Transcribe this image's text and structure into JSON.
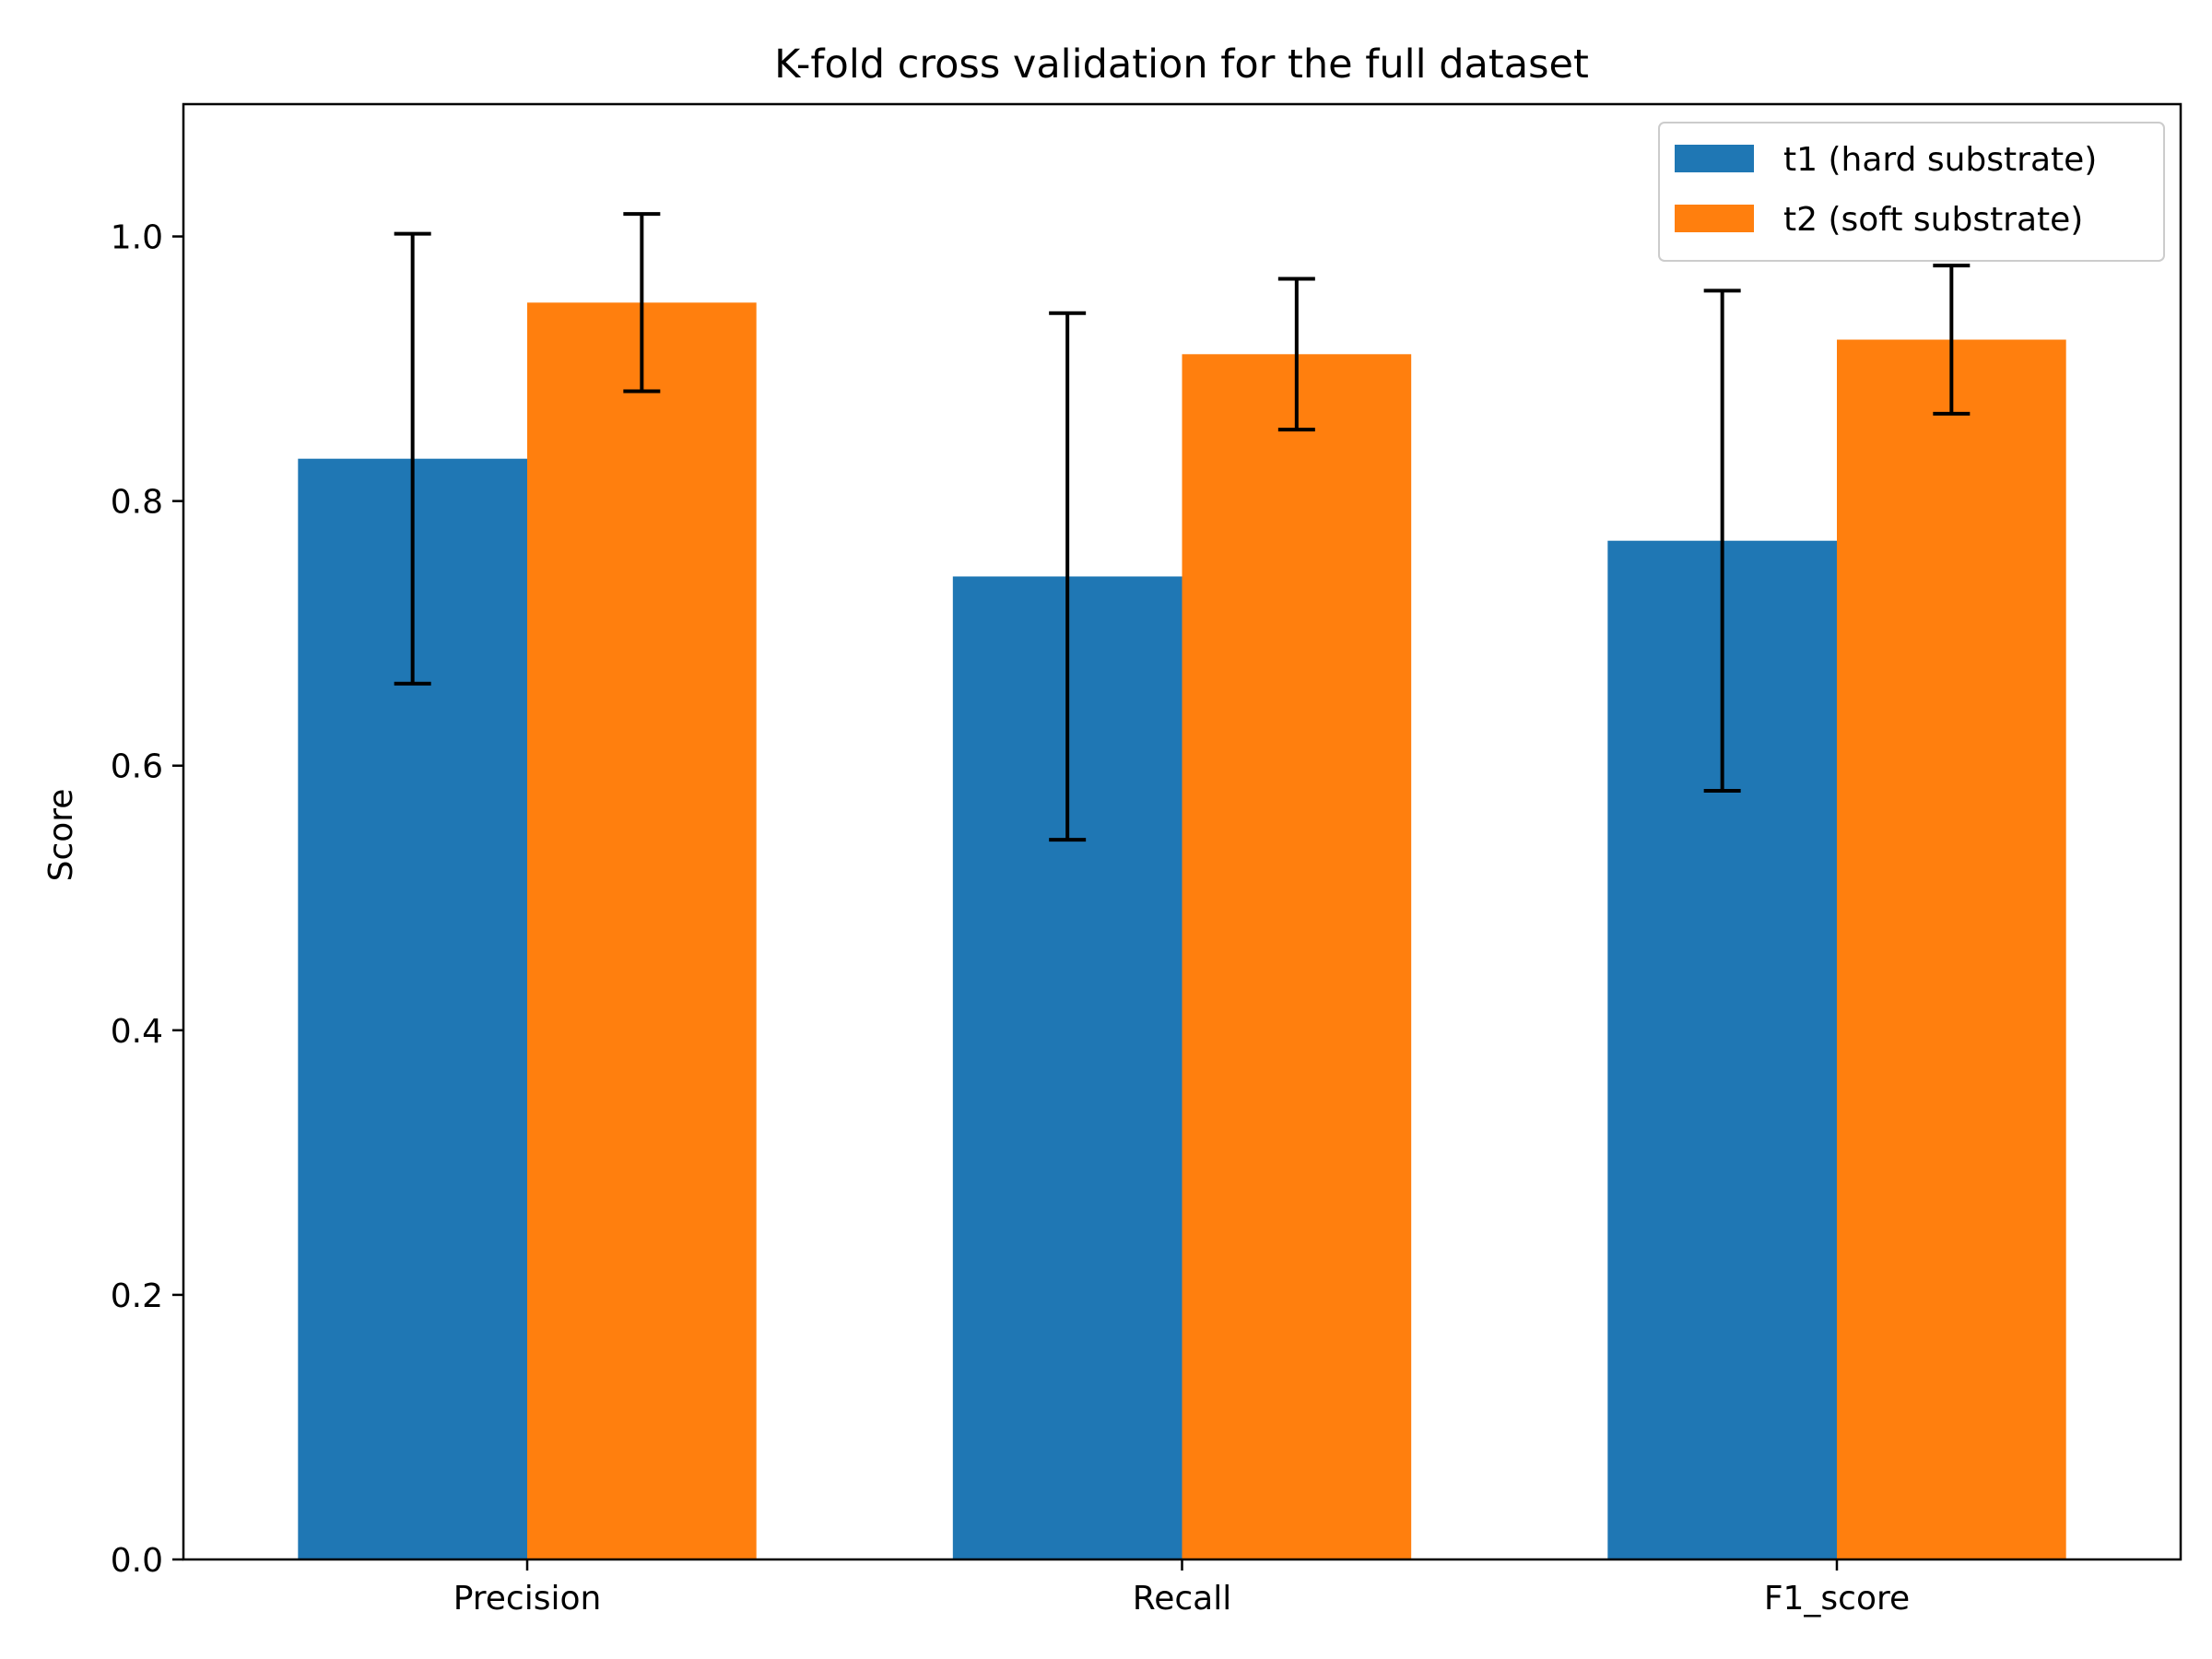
{
  "chart_data": {
    "type": "bar",
    "title": "K-fold cross validation for the full dataset",
    "xlabel": "",
    "ylabel": "Score",
    "ylim": [
      0,
      1.1
    ],
    "yticks": [
      "0.0",
      "0.2",
      "0.4",
      "0.6",
      "0.8",
      "1.0"
    ],
    "categories": [
      "Precision",
      "Recall",
      "F1_score"
    ],
    "series": [
      {
        "name": "t1 (hard substrate)",
        "color": "#1f77b4",
        "values": [
          0.832,
          0.743,
          0.77
        ],
        "errors": [
          0.17,
          0.199,
          0.189
        ]
      },
      {
        "name": "t2 (soft substrate)",
        "color": "#ff7f0e",
        "values": [
          0.95,
          0.911,
          0.922
        ],
        "errors": [
          0.067,
          0.057,
          0.056
        ]
      }
    ],
    "legend": "top-right",
    "grid": false
  }
}
